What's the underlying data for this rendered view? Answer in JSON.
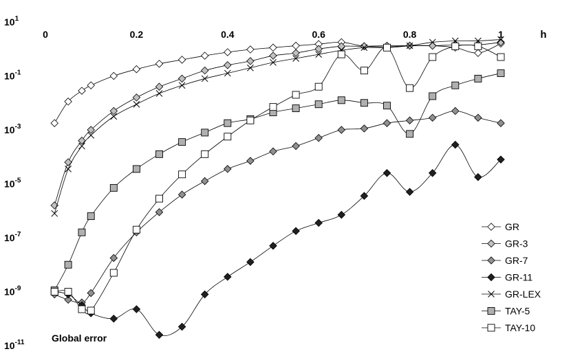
{
  "chart_data": {
    "type": "line",
    "title": "",
    "xlabel": "h",
    "ylabel": "",
    "annotation": "Global error",
    "xlim": [
      0,
      1
    ],
    "ylim_exponent": [
      -11,
      1
    ],
    "log_y": true,
    "grid": false,
    "legend_position": "bottom-right",
    "x_ticks": [
      "0",
      "0.2",
      "0.4",
      "0.6",
      "0.8",
      "1"
    ],
    "y_ticks": [
      {
        "base": "10",
        "exp": "1"
      },
      {
        "base": "10",
        "exp": "-1"
      },
      {
        "base": "10",
        "exp": "-3"
      },
      {
        "base": "10",
        "exp": "-5"
      },
      {
        "base": "10",
        "exp": "-7"
      },
      {
        "base": "10",
        "exp": "-9"
      },
      {
        "base": "10",
        "exp": "-11"
      }
    ],
    "series": [
      {
        "name": "GR",
        "marker": "diamond",
        "fill": "#ffffff",
        "points": [
          [
            0.02,
            -2.75
          ],
          [
            0.05,
            -1.95
          ],
          [
            0.08,
            -1.55
          ],
          [
            0.1,
            -1.35
          ],
          [
            0.15,
            -1.0
          ],
          [
            0.2,
            -0.75
          ],
          [
            0.25,
            -0.55
          ],
          [
            0.3,
            -0.4
          ],
          [
            0.35,
            -0.25
          ],
          [
            0.4,
            -0.12
          ],
          [
            0.45,
            -0.02
          ],
          [
            0.5,
            0.05
          ],
          [
            0.55,
            0.12
          ],
          [
            0.6,
            0.18
          ],
          [
            0.65,
            0.25
          ],
          [
            0.7,
            0.1
          ],
          [
            0.75,
            0.08
          ],
          [
            0.8,
            0.12
          ],
          [
            0.85,
            0.12
          ],
          [
            0.9,
            0.05
          ],
          [
            0.95,
            -0.15
          ],
          [
            1.0,
            0.2
          ]
        ]
      },
      {
        "name": "GR-3",
        "marker": "diamond",
        "fill": "#c0c0c0",
        "points": [
          [
            0.02,
            -5.8
          ],
          [
            0.05,
            -4.2
          ],
          [
            0.08,
            -3.4
          ],
          [
            0.1,
            -3.0
          ],
          [
            0.15,
            -2.3
          ],
          [
            0.2,
            -1.8
          ],
          [
            0.25,
            -1.4
          ],
          [
            0.3,
            -1.1
          ],
          [
            0.35,
            -0.8
          ],
          [
            0.4,
            -0.6
          ],
          [
            0.45,
            -0.45
          ],
          [
            0.5,
            -0.25
          ],
          [
            0.55,
            -0.15
          ],
          [
            0.6,
            0.0
          ],
          [
            0.65,
            0.1
          ],
          [
            0.7,
            0.1
          ],
          [
            0.75,
            0.12
          ],
          [
            0.8,
            0.12
          ],
          [
            0.85,
            0.12
          ],
          [
            0.9,
            0.15
          ],
          [
            0.95,
            0.15
          ],
          [
            1.0,
            0.25
          ]
        ]
      },
      {
        "name": "GR-7",
        "marker": "diamond",
        "fill": "#909090",
        "points": [
          [
            0.02,
            -9.1
          ],
          [
            0.05,
            -9.3
          ],
          [
            0.08,
            -9.4
          ],
          [
            0.1,
            -9.05
          ],
          [
            0.15,
            -7.75
          ],
          [
            0.2,
            -6.8
          ],
          [
            0.25,
            -6.05
          ],
          [
            0.3,
            -5.4
          ],
          [
            0.35,
            -4.9
          ],
          [
            0.4,
            -4.45
          ],
          [
            0.45,
            -4.15
          ],
          [
            0.5,
            -3.8
          ],
          [
            0.55,
            -3.6
          ],
          [
            0.6,
            -3.3
          ],
          [
            0.65,
            -3.0
          ],
          [
            0.7,
            -2.95
          ],
          [
            0.75,
            -2.75
          ],
          [
            0.8,
            -2.65
          ],
          [
            0.85,
            -2.55
          ],
          [
            0.9,
            -2.3
          ],
          [
            0.95,
            -2.55
          ],
          [
            1.0,
            -2.75
          ]
        ]
      },
      {
        "name": "GR-11",
        "marker": "diamond",
        "fill": "#202020",
        "points": [
          [
            0.02,
            -9.0
          ],
          [
            0.05,
            -9.1
          ],
          [
            0.08,
            -9.5
          ],
          [
            0.1,
            -9.8
          ],
          [
            0.15,
            -10.0
          ],
          [
            0.2,
            -9.65
          ],
          [
            0.25,
            -10.6
          ],
          [
            0.3,
            -10.3
          ],
          [
            0.35,
            -9.1
          ],
          [
            0.4,
            -8.45
          ],
          [
            0.45,
            -7.9
          ],
          [
            0.5,
            -7.3
          ],
          [
            0.55,
            -6.75
          ],
          [
            0.6,
            -6.45
          ],
          [
            0.65,
            -6.15
          ],
          [
            0.7,
            -5.45
          ],
          [
            0.75,
            -4.6
          ],
          [
            0.8,
            -5.3
          ],
          [
            0.85,
            -4.6
          ],
          [
            0.9,
            -3.55
          ],
          [
            0.95,
            -4.75
          ],
          [
            1.0,
            -4.1
          ]
        ]
      },
      {
        "name": "GR-LEX",
        "marker": "x",
        "fill": "#000000",
        "points": [
          [
            0.02,
            -6.1
          ],
          [
            0.05,
            -4.45
          ],
          [
            0.08,
            -3.6
          ],
          [
            0.1,
            -3.2
          ],
          [
            0.15,
            -2.5
          ],
          [
            0.2,
            -2.05
          ],
          [
            0.25,
            -1.65
          ],
          [
            0.3,
            -1.35
          ],
          [
            0.35,
            -1.1
          ],
          [
            0.4,
            -0.9
          ],
          [
            0.45,
            -0.7
          ],
          [
            0.5,
            -0.5
          ],
          [
            0.55,
            -0.35
          ],
          [
            0.6,
            -0.2
          ],
          [
            0.65,
            -0.05
          ],
          [
            0.7,
            0.05
          ],
          [
            0.75,
            0.05
          ],
          [
            0.8,
            0.12
          ],
          [
            0.85,
            0.25
          ],
          [
            0.9,
            0.3
          ],
          [
            0.95,
            0.3
          ],
          [
            1.0,
            0.35
          ]
        ]
      },
      {
        "name": "TAY-5",
        "marker": "square",
        "fill": "#b0b0b0",
        "points": [
          [
            0.02,
            -8.95
          ],
          [
            0.05,
            -8.0
          ],
          [
            0.08,
            -6.8
          ],
          [
            0.1,
            -6.2
          ],
          [
            0.15,
            -5.15
          ],
          [
            0.2,
            -4.45
          ],
          [
            0.25,
            -3.9
          ],
          [
            0.3,
            -3.45
          ],
          [
            0.35,
            -3.1
          ],
          [
            0.4,
            -2.75
          ],
          [
            0.45,
            -2.6
          ],
          [
            0.5,
            -2.35
          ],
          [
            0.55,
            -2.2
          ],
          [
            0.6,
            -2.05
          ],
          [
            0.65,
            -1.9
          ],
          [
            0.7,
            -2.0
          ],
          [
            0.75,
            -2.1
          ],
          [
            0.8,
            -3.15
          ],
          [
            0.85,
            -1.75
          ],
          [
            0.9,
            -1.35
          ],
          [
            0.95,
            -1.1
          ],
          [
            1.0,
            -0.9
          ]
        ]
      },
      {
        "name": "TAY-10",
        "marker": "square",
        "fill": "#ffffff",
        "points": [
          [
            0.02,
            -9.0
          ],
          [
            0.05,
            -9.0
          ],
          [
            0.08,
            -9.65
          ],
          [
            0.1,
            -9.7
          ],
          [
            0.15,
            -8.3
          ],
          [
            0.2,
            -6.7
          ],
          [
            0.25,
            -5.55
          ],
          [
            0.3,
            -4.65
          ],
          [
            0.35,
            -3.9
          ],
          [
            0.4,
            -3.25
          ],
          [
            0.45,
            -2.65
          ],
          [
            0.5,
            -2.15
          ],
          [
            0.55,
            -1.7
          ],
          [
            0.6,
            -1.4
          ],
          [
            0.65,
            -0.2
          ],
          [
            0.7,
            -0.8
          ],
          [
            0.75,
            0.05
          ],
          [
            0.8,
            -1.45
          ],
          [
            0.85,
            -0.3
          ],
          [
            0.9,
            0.1
          ],
          [
            0.95,
            0.1
          ],
          [
            1.0,
            -0.3
          ]
        ]
      }
    ]
  }
}
